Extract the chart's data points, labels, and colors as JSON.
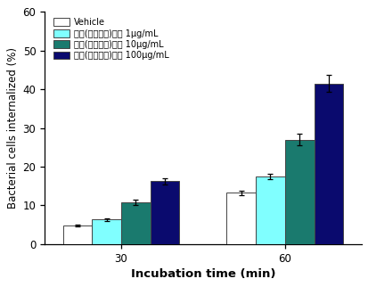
{
  "groups": [
    "30",
    "60"
  ],
  "group_positions": [
    0.45,
    1.35
  ],
  "bar_width": 0.16,
  "series": [
    {
      "label": "Vehicle",
      "color": "#FFFFFF",
      "edgecolor": "#444444",
      "values": [
        4.7,
        13.2
      ],
      "errors": [
        0.25,
        0.6
      ]
    },
    {
      "label": "대두(생물전환)산물 1μg/mL",
      "color": "#80FFFF",
      "edgecolor": "#444444",
      "values": [
        6.3,
        17.5
      ],
      "errors": [
        0.3,
        0.7
      ]
    },
    {
      "label": "대두(생물전환)산물 10μg/mL",
      "color": "#1A7A6E",
      "edgecolor": "#444444",
      "values": [
        10.7,
        27.0
      ],
      "errors": [
        0.7,
        1.5
      ]
    },
    {
      "label": "대두(생물전환)산물 100μg/mL",
      "color": "#0A0A6E",
      "edgecolor": "#444444",
      "values": [
        16.2,
        41.5
      ],
      "errors": [
        0.8,
        2.2
      ]
    }
  ],
  "xlabel": "Incubation time (min)",
  "ylabel": "Bacterial cells internalized (%)",
  "ylim": [
    0,
    60
  ],
  "yticks": [
    0,
    10,
    20,
    30,
    40,
    50,
    60
  ],
  "xlabel_fontsize": 9.5,
  "ylabel_fontsize": 8.5,
  "legend_fontsize": 7.0,
  "tick_fontsize": 8.5,
  "background_color": "#ffffff"
}
